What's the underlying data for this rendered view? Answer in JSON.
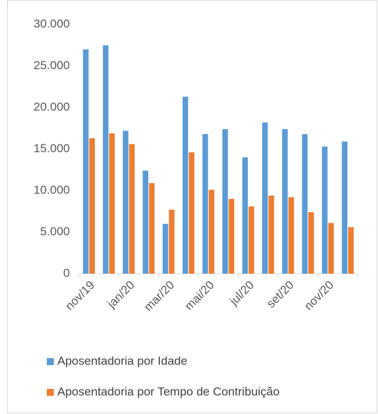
{
  "chart_data": {
    "type": "bar",
    "categories": [
      "nov/19",
      null,
      "jan/20",
      null,
      "mar/20",
      null,
      "mai/20",
      null,
      "jul/20",
      null,
      "set/20",
      null,
      "nov/20",
      null
    ],
    "series": [
      {
        "name": "Aposentadoria por Idade",
        "color": "#5b9bd5",
        "values": [
          27000,
          27500,
          17200,
          12400,
          6000,
          21300,
          16800,
          17400,
          14000,
          18200,
          17400,
          16800,
          15300,
          15900
        ]
      },
      {
        "name": "Aposentadoria por Tempo de Contribuição",
        "color": "#ed7d31",
        "values": [
          16300,
          16900,
          15600,
          10900,
          7700,
          14600,
          10100,
          9000,
          8100,
          9400,
          9200,
          7400,
          6100,
          5600
        ]
      }
    ],
    "ylim": [
      0,
      30000
    ],
    "yticks": [
      0,
      {
        "value": 5000,
        "label": "5.000"
      },
      {
        "value": 10000,
        "label": "10.000"
      },
      {
        "value": 15000,
        "label": "15.000"
      },
      {
        "value": 20000,
        "label": "20.000"
      },
      {
        "value": 25000,
        "label": "25.000"
      },
      {
        "value": 30000,
        "label": "30.000"
      }
    ],
    "grid": false,
    "legend": "bottom"
  }
}
